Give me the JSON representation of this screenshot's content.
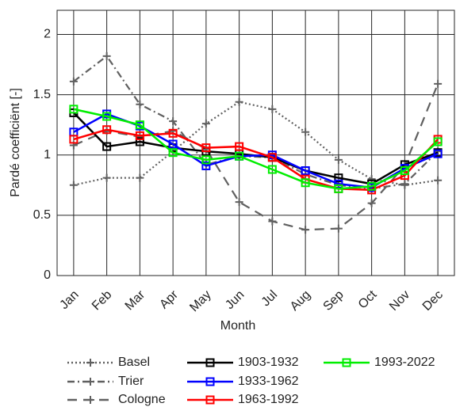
{
  "chart_data": {
    "type": "line",
    "x_label": "Month",
    "y_label": "Pardé coefficiënt [-]",
    "categories": [
      "Jan",
      "Feb",
      "Mar",
      "Apr",
      "May",
      "Jun",
      "Jul",
      "Aug",
      "Sep",
      "Oct",
      "Nov",
      "Dec"
    ],
    "ylim": [
      0,
      2.2
    ],
    "yticks": [
      0,
      0.5,
      1,
      1.5,
      2
    ],
    "grid": true,
    "legend": "bottom",
    "series": [
      {
        "name": "Basel",
        "color": "#606060",
        "dash": "dot",
        "marker": "plus",
        "values": [
          0.75,
          0.81,
          0.81,
          1.03,
          1.26,
          1.44,
          1.38,
          1.19,
          0.96,
          0.8,
          0.75,
          0.79
        ]
      },
      {
        "name": "Trier",
        "color": "#606060",
        "dash": "dashdot",
        "marker": "plus",
        "values": [
          1.61,
          1.82,
          1.42,
          1.28,
          0.92,
          0.99,
          0.98,
          0.84,
          0.75,
          0.72,
          0.76,
          1.03
        ]
      },
      {
        "name": "Cologne",
        "color": "#606060",
        "dash": "dash",
        "marker": "plus",
        "values": [
          1.08,
          1.2,
          1.15,
          1.2,
          1.05,
          0.61,
          0.45,
          0.38,
          0.39,
          0.6,
          0.91,
          1.59
        ]
      },
      {
        "name": "1903-1932",
        "color": "#000000",
        "dash": "solid",
        "marker": "square",
        "values": [
          1.35,
          1.07,
          1.11,
          1.06,
          1.03,
          1.01,
          0.98,
          0.87,
          0.81,
          0.76,
          0.92,
          1.02
        ]
      },
      {
        "name": "1933-1962",
        "color": "#0000ff",
        "dash": "solid",
        "marker": "square",
        "values": [
          1.19,
          1.34,
          1.24,
          1.09,
          0.91,
          0.99,
          1.0,
          0.87,
          0.76,
          0.73,
          0.89,
          1.01
        ]
      },
      {
        "name": "1963-1992",
        "color": "#ff0000",
        "dash": "solid",
        "marker": "square",
        "values": [
          1.13,
          1.21,
          1.16,
          1.18,
          1.06,
          1.07,
          0.98,
          0.8,
          0.72,
          0.71,
          0.83,
          1.13
        ]
      },
      {
        "name": "1993-2022",
        "color": "#00ee00",
        "dash": "solid",
        "marker": "square",
        "values": [
          1.38,
          1.32,
          1.25,
          1.02,
          0.96,
          0.99,
          0.88,
          0.77,
          0.72,
          0.74,
          0.87,
          1.11
        ]
      }
    ]
  }
}
